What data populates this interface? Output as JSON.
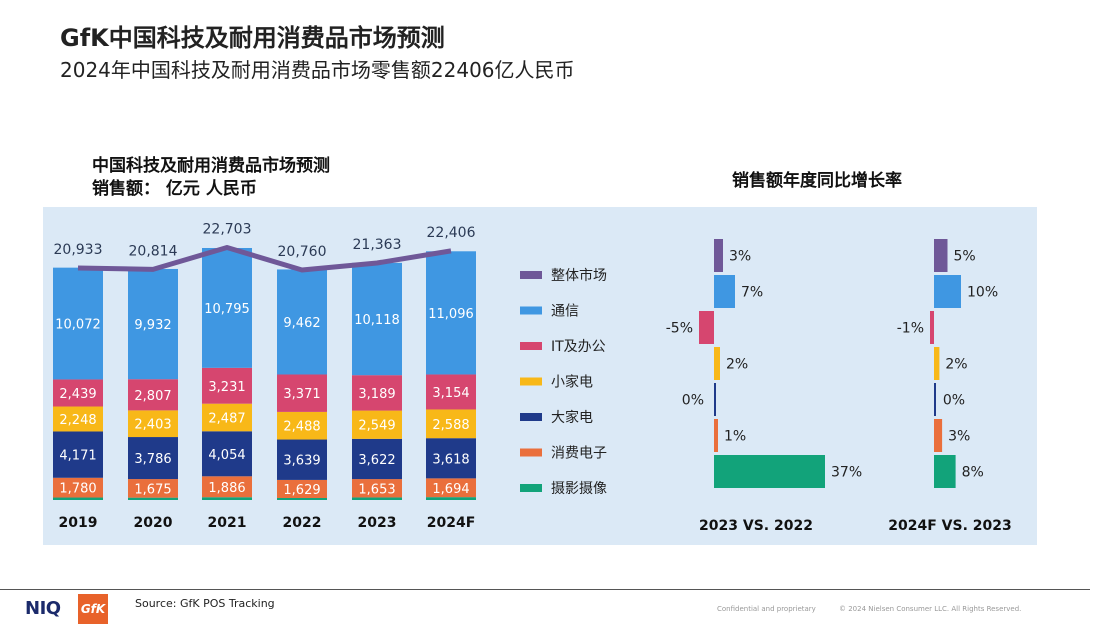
{
  "header": {
    "title": "GfK中国科技及耐用消费品市场预测",
    "subtitle": "2024年中国科技及耐用消费品市场零售额22406亿人民币"
  },
  "chart_data": [
    {
      "type": "bar",
      "title_line1": "中国科技及耐用消费品市场预测",
      "title_line2": "销售额：  亿元 人民币",
      "categories": [
        "2019",
        "2020",
        "2021",
        "2022",
        "2023",
        "2024F"
      ],
      "stacked": true,
      "series": [
        {
          "name": "摄影摄像",
          "color": "#12a37a",
          "values": [
            null,
            null,
            null,
            null,
            null,
            null
          ]
        },
        {
          "name": "消费电子",
          "color": "#ea6f3c",
          "values": [
            1780,
            1675,
            1886,
            1629,
            1653,
            1694
          ]
        },
        {
          "name": "大家电",
          "color": "#1f3a8a",
          "values": [
            4171,
            3786,
            4054,
            3639,
            3622,
            3618
          ]
        },
        {
          "name": "小家电",
          "color": "#f8b818",
          "values": [
            2248,
            2403,
            2487,
            2488,
            2549,
            2588
          ]
        },
        {
          "name": "IT及办公",
          "color": "#d6466f",
          "values": [
            2439,
            2807,
            3231,
            3371,
            3189,
            3154
          ]
        },
        {
          "name": "通信",
          "color": "#3f97e2",
          "values": [
            10072,
            9932,
            10795,
            9462,
            10118,
            11096
          ]
        }
      ],
      "line": {
        "name": "整体市场",
        "color": "#6f5898",
        "values": [
          20933,
          20814,
          22703,
          20760,
          21363,
          22406
        ]
      },
      "value_labels": {
        "消费电子": [
          "1,780",
          "1,675",
          "1,886",
          "1,629",
          "1,653",
          "1,694"
        ],
        "大家电": [
          "4,171",
          "3,786",
          "4,054",
          "3,639",
          "3,622",
          "3,618"
        ],
        "小家电": [
          "2,248",
          "2,403",
          "2,487",
          "2,488",
          "2,549",
          "2,588"
        ],
        "IT及办公": [
          "2,439",
          "2,807",
          "3,231",
          "3,371",
          "3,189",
          "3,154"
        ],
        "通信": [
          "10,072",
          "9,932",
          "10,795",
          "9,462",
          "10,118",
          "11,096"
        ],
        "整体市场": [
          "20,933",
          "20,814",
          "22,703",
          "20,760",
          "21,363",
          "22,406"
        ]
      }
    },
    {
      "type": "bar",
      "orientation": "horizontal",
      "title": "销售额年度同比增长率",
      "categories": [
        "整体市场",
        "通信",
        "IT及办公",
        "小家电",
        "大家电",
        "消费电子",
        "摄影摄像"
      ],
      "colors": [
        "#6f5898",
        "#3f97e2",
        "#d6466f",
        "#f8b818",
        "#1f3a8a",
        "#ea6f3c",
        "#12a37a"
      ],
      "series": [
        {
          "name": "2023 VS. 2022",
          "values": [
            3,
            7,
            -5,
            2,
            0,
            1,
            37
          ],
          "labels": [
            "3%",
            "7%",
            "-5%",
            "2%",
            "0%",
            "1%",
            "37%"
          ]
        },
        {
          "name": "2024F VS. 2023",
          "values": [
            5,
            10,
            -1,
            2,
            0,
            3,
            8
          ],
          "labels": [
            "5%",
            "10%",
            "-1%",
            "2%",
            "0%",
            "3%",
            "8%"
          ]
        }
      ]
    }
  ],
  "legend": [
    "整体市场",
    "通信",
    "IT及办公",
    "小家电",
    "大家电",
    "消费电子",
    "摄影摄像"
  ],
  "footer": {
    "logo_niq": "NIQ",
    "logo_gfk": "GfK",
    "source": "Source: GfK POS Tracking",
    "confidential": "Confidential and proprietary",
    "copyright": "© 2024 Nielsen Consumer LLC. All Rights Reserved."
  }
}
